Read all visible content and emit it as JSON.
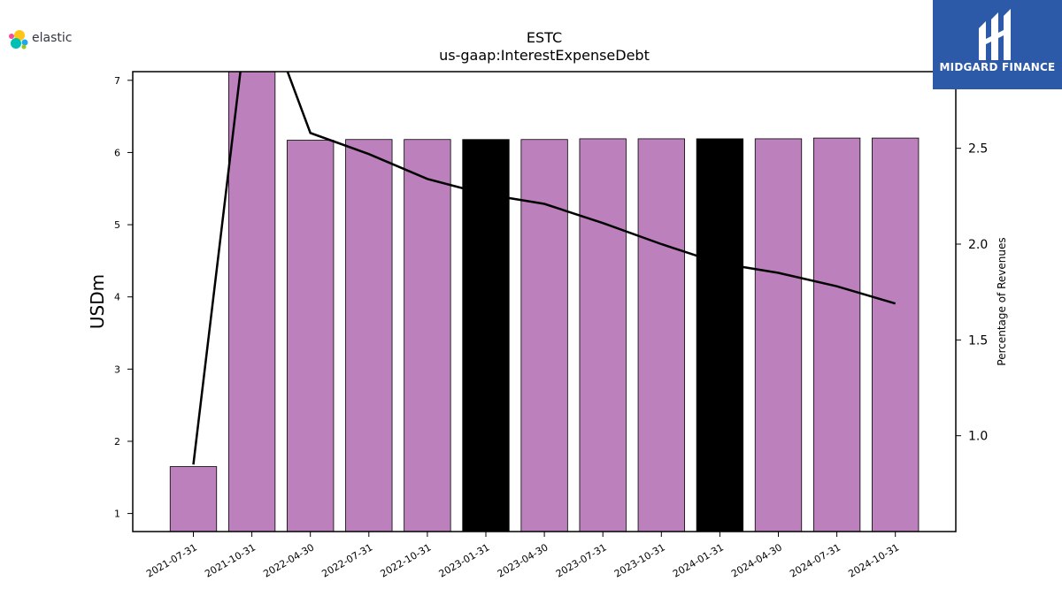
{
  "logos": {
    "left_text": "elastic",
    "right_text": "MIDGARD FINANCE",
    "right_bg": "#2d5aa8"
  },
  "chart_data": {
    "type": "bar",
    "title": "ESTC",
    "subtitle": "us-gaap:InterestExpenseDebt",
    "ylabel": "USDm",
    "y2label": "Percentage of Revenues",
    "categories": [
      "2021-07-31",
      "2021-10-31",
      "2022-04-30",
      "2022-07-31",
      "2022-10-31",
      "2023-01-31",
      "2023-04-30",
      "2023-07-31",
      "2023-10-31",
      "2024-01-31",
      "2024-04-30",
      "2024-07-31",
      "2024-10-31"
    ],
    "values": [
      1.65,
      7.2,
      6.17,
      6.18,
      6.18,
      6.18,
      6.18,
      6.19,
      6.19,
      6.19,
      6.19,
      6.2,
      6.2
    ],
    "highlight": [
      false,
      false,
      false,
      false,
      false,
      true,
      false,
      false,
      false,
      true,
      false,
      false,
      false
    ],
    "bar_color": "#bc80bd",
    "highlight_color": "#000000",
    "line_series": {
      "values": [
        0.85,
        3.4,
        2.58,
        2.47,
        2.34,
        2.26,
        2.21,
        2.11,
        2.0,
        1.9,
        1.85,
        1.78,
        1.69
      ],
      "color": "#000000"
    },
    "ylim": [
      0.75,
      7.12
    ],
    "yticks": [
      1,
      2,
      3,
      4,
      5,
      6,
      7
    ],
    "y2lim": [
      0.5,
      2.9
    ],
    "y2ticks": [
      1.0,
      1.5,
      2.0,
      2.5
    ],
    "y2tick_labels": [
      "1.0",
      "1.5",
      "2.0",
      "2.5"
    ]
  }
}
